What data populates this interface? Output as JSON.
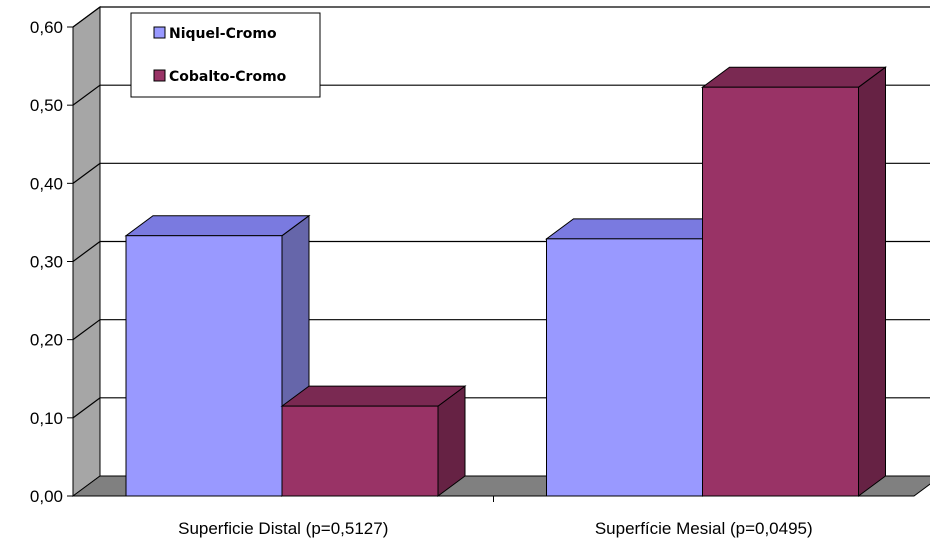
{
  "chart_data": {
    "type": "bar",
    "style": "3d-clustered-column",
    "categories": [
      "Superficie Distal (p=0,5127)",
      "Superfície Mesial (p=0,0495)"
    ],
    "series": [
      {
        "name": "Niquel-Cromo",
        "values": [
          0.333,
          0.329
        ]
      },
      {
        "name": "Cobalto-Cromo",
        "values": [
          0.115,
          0.523
        ]
      }
    ],
    "ylim": [
      0,
      0.6
    ],
    "yticks": [
      "0,00",
      "0,10",
      "0,20",
      "0,30",
      "0,40",
      "0,50",
      "0,60"
    ],
    "grid": true,
    "legend": "top-left",
    "colors": {
      "niquel_front": "#9999ff",
      "niquel_top": "#7a7ae0",
      "niquel_side": "#6666aa",
      "cobalto_front": "#993366",
      "cobalto_top": "#7a2952",
      "cobalto_side": "#662244",
      "wall": "#a6a6a6",
      "floor": "#808080"
    }
  }
}
